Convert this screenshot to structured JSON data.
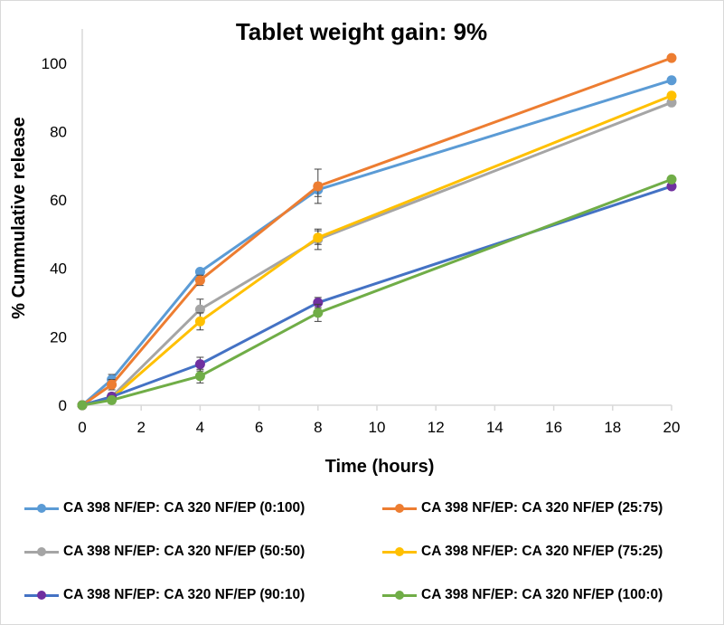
{
  "chart_data": {
    "type": "line",
    "title": "Tablet weight gain: 9%",
    "xlabel": "Time (hours)",
    "ylabel": "% Cummulative release",
    "x": [
      0,
      1,
      4,
      8,
      20
    ],
    "xlim": [
      0,
      20
    ],
    "ylim": [
      0,
      110
    ],
    "xticks": [
      0,
      2,
      4,
      6,
      8,
      10,
      12,
      14,
      16,
      18,
      20
    ],
    "yticks": [
      0,
      20,
      40,
      60,
      80,
      100
    ],
    "grid": false,
    "legend_position": "bottom",
    "series": [
      {
        "name": "CA 398 NF/EP: CA 320 NF/EP (0:100)",
        "color": "#5b9bd5",
        "values": [
          0,
          7.5,
          39,
          63,
          95
        ],
        "error": [
          0,
          1.5,
          0.5,
          2,
          0
        ]
      },
      {
        "name": "CA 398 NF/EP: CA 320 NF/EP (25:75)",
        "color": "#ed7d31",
        "values": [
          0,
          6,
          36.5,
          64,
          101.5
        ],
        "error": [
          0,
          1.5,
          1.5,
          5,
          0
        ]
      },
      {
        "name": "CA 398 NF/EP: CA 320 NF/EP (50:50)",
        "color": "#a5a5a5",
        "values": [
          0,
          2.5,
          28,
          48.5,
          88.5
        ],
        "error": [
          0,
          1,
          3,
          3,
          0
        ]
      },
      {
        "name": "CA 398 NF/EP: CA 320 NF/EP (75:25)",
        "color": "#ffc000",
        "values": [
          0,
          2,
          24.5,
          49,
          90.5
        ],
        "error": [
          0,
          1,
          2.5,
          2,
          0
        ]
      },
      {
        "name": "CA 398 NF/EP: CA 320 NF/EP (90:10)",
        "color": "#7030a0",
        "values": [
          0,
          2.5,
          12,
          30,
          64
        ],
        "error": [
          0,
          1,
          2,
          1.5,
          0
        ]
      },
      {
        "name": "CA 398 NF/EP: CA 320 NF/EP (100:0)",
        "color": "#70ad47",
        "values": [
          0,
          1.5,
          8.5,
          27,
          66
        ],
        "error": [
          0,
          1,
          2,
          2.5,
          0
        ]
      }
    ]
  },
  "series_line_colors": {
    "CA 398 NF/EP: CA 320 NF/EP (90:10)": "#4472c4"
  }
}
